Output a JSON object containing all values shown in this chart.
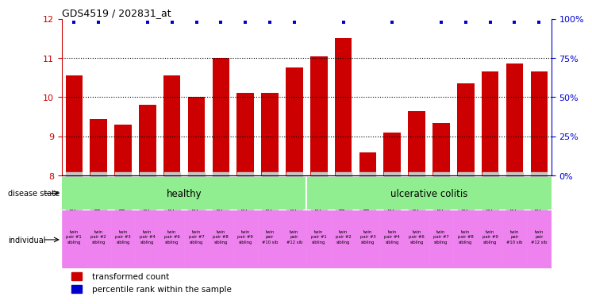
{
  "title": "GDS4519 / 202831_at",
  "samples": [
    "GSM560961",
    "GSM1012177",
    "GSM1012179",
    "GSM560962",
    "GSM560963",
    "GSM560964",
    "GSM560965",
    "GSM560966",
    "GSM560967",
    "GSM560968",
    "GSM560969",
    "GSM1012178",
    "GSM1012180",
    "GSM560970",
    "GSM560971",
    "GSM560972",
    "GSM560973",
    "GSM560974",
    "GSM560975",
    "GSM560976"
  ],
  "bar_values": [
    10.55,
    9.45,
    9.3,
    9.8,
    10.55,
    10.0,
    11.0,
    10.1,
    10.1,
    10.75,
    11.05,
    11.5,
    8.6,
    9.1,
    9.65,
    9.35,
    10.35,
    10.65,
    10.85,
    10.65
  ],
  "percentile_markers": [
    true,
    true,
    false,
    true,
    true,
    true,
    true,
    true,
    true,
    true,
    false,
    true,
    false,
    true,
    false,
    true,
    true,
    true,
    true,
    true
  ],
  "bar_color": "#cc0000",
  "percentile_color": "#0000cc",
  "ylim_left": [
    8,
    12
  ],
  "yticks_left": [
    8,
    9,
    10,
    11,
    12
  ],
  "ylim_right": [
    0,
    100
  ],
  "yticks_right": [
    0,
    25,
    50,
    75,
    100
  ],
  "yright_labels": [
    "0%",
    "25%",
    "50%",
    "75%",
    "100%"
  ],
  "disease_state_labels": [
    "healthy",
    "ulcerative colitis"
  ],
  "healthy_color": "#90ee90",
  "uc_color": "#90ee90",
  "individual_labels": [
    "twin\npair #1\nsibling",
    "twin\npair #2\nsibling",
    "twin\npair #3\nsibling",
    "twin\npair #4\nsibling",
    "twin\npair #6\nsibling",
    "twin\npair #7\nsibling",
    "twin\npair #8\nsibling",
    "twin\npair #9\nsibling",
    "twin\npair\n#10 sib",
    "twin\npair\n#12 sib",
    "twin\npair #1\nsibling",
    "twin\npair #2\nsibling",
    "twin\npair #3\nsibling",
    "twin\npair #4\nsibling",
    "twin\npair #6\nsibling",
    "twin\npair #7\nsibling",
    "twin\npair #8\nsibling",
    "twin\npair #9\nsibling",
    "twin\npair\n#10 sib",
    "twin\npair\n#12 sib"
  ],
  "individual_color": "#ee82ee",
  "ticklabel_color_left": "#cc0000",
  "ticklabel_color_right": "#0000cc",
  "legend_red_label": "transformed count",
  "legend_blue_label": "percentile rank within the sample",
  "xticklabel_bg": "#c8c8c8",
  "plot_bg": "#ffffff"
}
